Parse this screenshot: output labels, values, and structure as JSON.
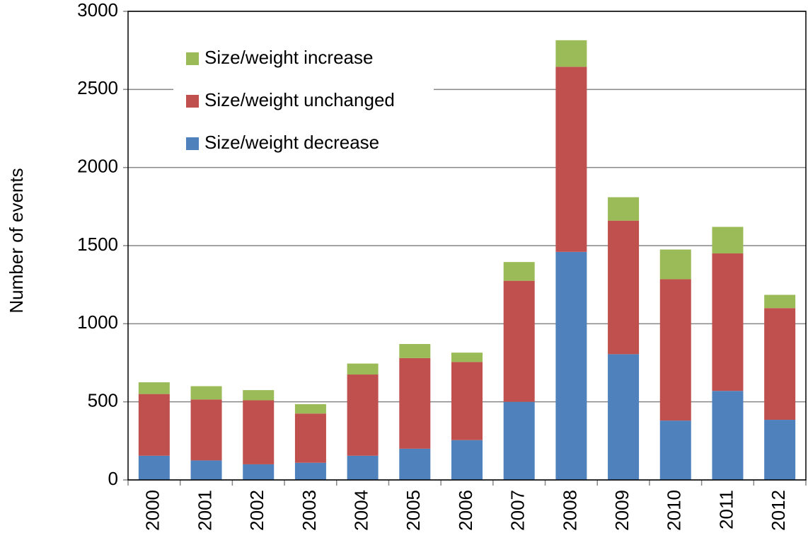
{
  "chart_data": {
    "type": "stacked_bar",
    "y_label": "Number of events",
    "categories": [
      "2000",
      "2001",
      "2002",
      "2003",
      "2004",
      "2005",
      "2006",
      "2007",
      "2008",
      "2009",
      "2010",
      "2011",
      "2012"
    ],
    "series": [
      {
        "name": "Size/weight decrease",
        "color": "#4f81bd",
        "values": [
          155,
          125,
          100,
          110,
          155,
          200,
          255,
          500,
          1460,
          805,
          380,
          570,
          385
        ]
      },
      {
        "name": "Size/weight unchanged",
        "color": "#c0504d",
        "values": [
          395,
          390,
          410,
          315,
          520,
          580,
          500,
          775,
          1185,
          855,
          905,
          880,
          715
        ]
      },
      {
        "name": "Size/weight increase",
        "color": "#9bbb59",
        "values": [
          75,
          85,
          65,
          60,
          70,
          90,
          60,
          120,
          170,
          150,
          190,
          170,
          85
        ]
      }
    ],
    "ylim": [
      0,
      3000
    ],
    "yticks": [
      0,
      500,
      1000,
      1500,
      2000,
      2500,
      3000
    ],
    "grid": true,
    "legend": "upper left"
  }
}
